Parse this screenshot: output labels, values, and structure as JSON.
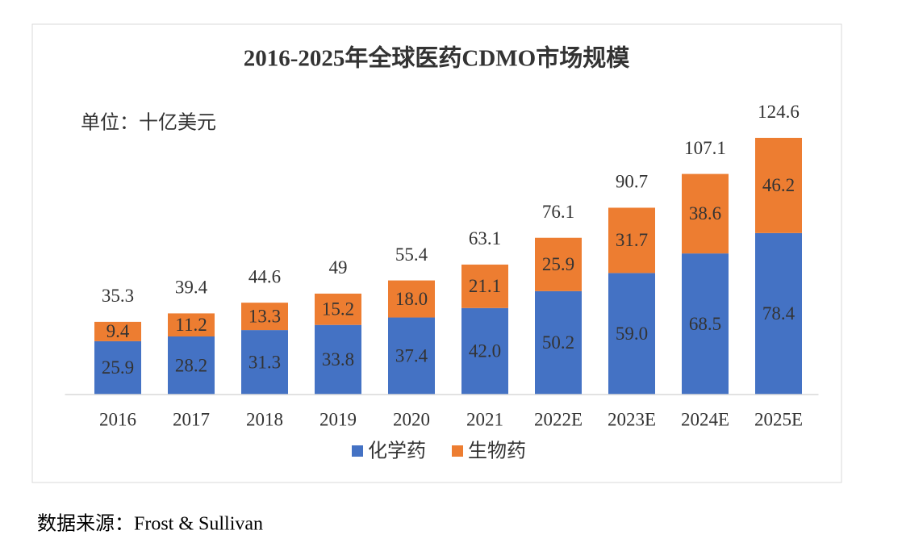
{
  "chart_data": {
    "type": "stacked_bar",
    "title": "2016-2025年全球医药CDMO市场规模",
    "unit": "单位：十亿美元",
    "categories": [
      "2016",
      "2017",
      "2018",
      "2019",
      "2020",
      "2021",
      "2022E",
      "2023E",
      "2024E",
      "2025E"
    ],
    "series": [
      {
        "name": "化学药",
        "color": "#4472c4",
        "values": [
          25.9,
          28.2,
          31.3,
          33.8,
          37.4,
          42.0,
          50.2,
          59.0,
          68.5,
          78.4
        ],
        "value_labels": [
          "25.9",
          "28.2",
          "31.3",
          "33.8",
          "37.4",
          "42.0",
          "50.2",
          "59.0",
          "68.5",
          "78.4"
        ]
      },
      {
        "name": "生物药",
        "color": "#ed7d31",
        "values": [
          9.4,
          11.2,
          13.3,
          15.2,
          18.0,
          21.1,
          25.9,
          31.7,
          38.6,
          46.2
        ],
        "value_labels": [
          "9.4",
          "11.2",
          "13.3",
          "15.2",
          "18.0",
          "21.1",
          "25.9",
          "31.7",
          "38.6",
          "46.2"
        ]
      }
    ],
    "totals": [
      35.3,
      39.4,
      44.6,
      49.0,
      55.4,
      63.1,
      76.1,
      90.7,
      107.1,
      124.6
    ],
    "total_labels": [
      "35.3",
      "39.4",
      "44.6",
      "49.0",
      "55.4",
      "63.1",
      "76.1",
      "90.7",
      "107.1",
      "124.6"
    ],
    "ylim": [
      0,
      140
    ]
  },
  "source": "数据来源：Frost & Sullivan"
}
